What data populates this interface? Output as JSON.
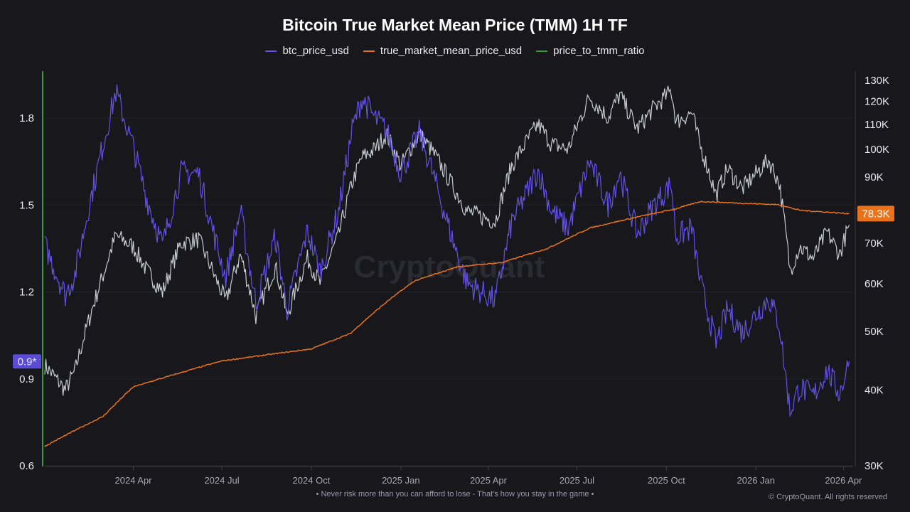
{
  "chart_data": {
    "type": "line",
    "title": "Bitcoin True Market Mean Price (TMM) 1H TF",
    "legend_placement": "top-center",
    "grid": true,
    "x_ticks": [
      "2024 Apr",
      "2024 Jul",
      "2024 Oct",
      "2025 Jan",
      "2025 Apr",
      "2025 Jul",
      "2025 Oct",
      "2026 Jan",
      "2026 Apr"
    ],
    "x_tick_dates": [
      "2024-04-01",
      "2024-07-01",
      "2024-10-01",
      "2025-01-01",
      "2025-04-01",
      "2025-07-01",
      "2025-10-01",
      "2026-01-01",
      "2026-04-01"
    ],
    "xlim": [
      "2024-01-01",
      "2026-04-08"
    ],
    "left_axis": {
      "ticks": [
        "0.6",
        "0.9",
        "1.2",
        "1.5",
        "1.8"
      ],
      "range": [
        0.6,
        1.95
      ],
      "current_label": "0.9*",
      "color": "#5b4bd6"
    },
    "right_axis": {
      "scale": "log",
      "ticks": [
        "30K",
        "40K",
        "50K",
        "60K",
        "70K",
        "90K",
        "100K",
        "110K",
        "120K",
        "130K"
      ],
      "tick_values": [
        30000,
        40000,
        50000,
        60000,
        70000,
        90000,
        100000,
        110000,
        120000,
        130000
      ],
      "range": [
        30000,
        130000
      ],
      "current_label": "78.3K",
      "current_color": "#e8731a"
    },
    "series": [
      {
        "name": "btc_price_usd",
        "color": "#6650e8",
        "axis": "left",
        "dates": [
          "2024-01-01",
          "2024-01-22",
          "2024-02-01",
          "2024-02-15",
          "2024-03-01",
          "2024-03-14",
          "2024-04-01",
          "2024-04-15",
          "2024-05-01",
          "2024-05-20",
          "2024-06-07",
          "2024-06-25",
          "2024-07-05",
          "2024-07-20",
          "2024-08-05",
          "2024-08-25",
          "2024-09-06",
          "2024-09-27",
          "2024-10-10",
          "2024-10-29",
          "2024-11-12",
          "2024-11-22",
          "2024-12-05",
          "2024-12-17",
          "2025-01-01",
          "2025-01-20",
          "2025-02-01",
          "2025-02-25",
          "2025-03-10",
          "2025-04-08",
          "2025-04-25",
          "2025-05-22",
          "2025-06-05",
          "2025-06-22",
          "2025-07-14",
          "2025-08-02",
          "2025-08-14",
          "2025-09-01",
          "2025-09-18",
          "2025-10-06",
          "2025-10-11",
          "2025-10-27",
          "2025-11-05",
          "2025-11-21",
          "2025-12-03",
          "2025-12-18",
          "2026-01-14",
          "2026-01-25",
          "2026-02-05",
          "2026-02-15",
          "2026-03-01",
          "2026-03-15",
          "2026-03-28",
          "2026-04-07"
        ],
        "values": [
          1.36,
          1.19,
          1.26,
          1.49,
          1.71,
          1.89,
          1.7,
          1.52,
          1.36,
          1.61,
          1.61,
          1.37,
          1.25,
          1.48,
          1.16,
          1.39,
          1.14,
          1.41,
          1.27,
          1.48,
          1.76,
          1.87,
          1.8,
          1.76,
          1.61,
          1.75,
          1.63,
          1.36,
          1.23,
          1.17,
          1.44,
          1.62,
          1.48,
          1.42,
          1.65,
          1.5,
          1.61,
          1.4,
          1.5,
          1.57,
          1.39,
          1.42,
          1.23,
          1.02,
          1.14,
          1.06,
          1.18,
          1.09,
          0.79,
          0.87,
          0.84,
          0.93,
          0.85,
          0.96
        ]
      },
      {
        "name": "true_market_mean_price_usd",
        "color": "#e8731a",
        "axis": "right",
        "dates": [
          "2024-01-01",
          "2024-03-01",
          "2024-04-01",
          "2024-07-01",
          "2024-10-01",
          "2024-11-10",
          "2024-12-20",
          "2025-01-15",
          "2025-03-01",
          "2025-04-15",
          "2025-06-01",
          "2025-07-15",
          "2025-09-01",
          "2025-10-10",
          "2025-11-05",
          "2025-12-15",
          "2026-01-25",
          "2026-02-15",
          "2026-04-07"
        ],
        "values": [
          32300,
          36200,
          40500,
          44700,
          46800,
          49600,
          56400,
          60600,
          64000,
          65000,
          68600,
          74200,
          77300,
          79700,
          82000,
          81500,
          81000,
          79300,
          78300
        ]
      },
      {
        "name": "price_to_tmm_ratio",
        "color": "#3a9a3a",
        "axis": "left",
        "dates": [],
        "values": []
      }
    ],
    "price_overlay": {
      "color": "#c9c9d2",
      "axis": "right",
      "dates": [
        "2024-01-01",
        "2024-01-22",
        "2024-02-01",
        "2024-02-15",
        "2024-03-01",
        "2024-03-14",
        "2024-04-01",
        "2024-04-15",
        "2024-05-01",
        "2024-05-20",
        "2024-06-07",
        "2024-06-25",
        "2024-07-05",
        "2024-07-20",
        "2024-08-05",
        "2024-08-25",
        "2024-09-06",
        "2024-09-27",
        "2024-10-10",
        "2024-10-29",
        "2024-11-12",
        "2024-11-22",
        "2024-12-05",
        "2024-12-17",
        "2025-01-01",
        "2025-01-20",
        "2025-02-01",
        "2025-02-25",
        "2025-03-10",
        "2025-04-08",
        "2025-04-25",
        "2025-05-22",
        "2025-06-05",
        "2025-06-22",
        "2025-07-14",
        "2025-08-02",
        "2025-08-14",
        "2025-09-01",
        "2025-09-18",
        "2025-10-06",
        "2025-10-11",
        "2025-10-27",
        "2025-11-05",
        "2025-11-21",
        "2025-12-03",
        "2025-12-18",
        "2026-01-14",
        "2026-01-25",
        "2026-02-05",
        "2026-02-15",
        "2026-03-01",
        "2026-03-15",
        "2026-03-28",
        "2026-04-07"
      ],
      "values": [
        44000,
        40000,
        43000,
        52000,
        62000,
        72000,
        69000,
        63000,
        58000,
        70000,
        71000,
        61000,
        56000,
        67000,
        53000,
        64000,
        53000,
        66000,
        60000,
        72000,
        88000,
        97000,
        100000,
        106000,
        94000,
        106000,
        100000,
        86000,
        79000,
        76000,
        94000,
        110000,
        102000,
        100000,
        122000,
        113000,
        123000,
        108000,
        117000,
        125000,
        111000,
        115000,
        101000,
        84000,
        93000,
        86000,
        96000,
        88000,
        63000,
        69000,
        66000,
        73000,
        67000,
        75000
      ]
    }
  },
  "watermark": "CryptoQuant",
  "footer": "• Never risk more than you can afford to lose - That's how you stay in the game •",
  "copyright": "© CryptoQuant. All rights reserved"
}
